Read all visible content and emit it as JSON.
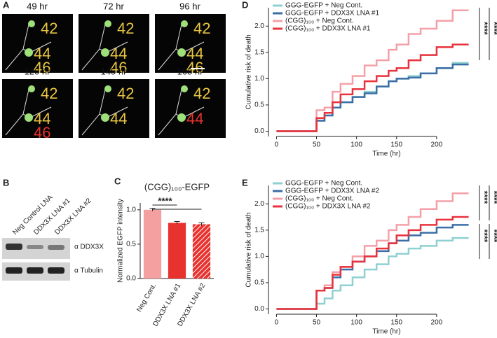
{
  "panel_a": {
    "label": "A",
    "tiles": [
      {
        "time": "49 hr",
        "cells": [
          {
            "label": "42",
            "color": "#e8c542"
          },
          {
            "label": "44",
            "color": "#e8c542"
          },
          {
            "label": "46",
            "color": "#e8c542"
          }
        ]
      },
      {
        "time": "72 hr",
        "cells": [
          {
            "label": "42",
            "color": "#e8c542"
          },
          {
            "label": "44",
            "color": "#e8c542"
          },
          {
            "label": "46",
            "color": "#e8c542"
          }
        ]
      },
      {
        "time": "96 hr",
        "cells": [
          {
            "label": "42",
            "color": "#e8c542"
          },
          {
            "label": "44",
            "color": "#e8c542"
          },
          {
            "label": "46",
            "color": "#e8c542"
          }
        ]
      },
      {
        "time": "120 hr",
        "cells": [
          {
            "label": "42",
            "color": "#e8c542"
          },
          {
            "label": "44",
            "color": "#e8c542"
          },
          {
            "label": "46",
            "color": "#e8322e"
          }
        ]
      },
      {
        "time": "145 hr",
        "cells": [
          {
            "label": "42",
            "color": "#e8c542"
          },
          {
            "label": "44",
            "color": "#e8c542"
          }
        ]
      },
      {
        "time": "168 hr",
        "cells": [
          {
            "label": "42",
            "color": "#e8c542"
          },
          {
            "label": "44",
            "color": "#e8322e"
          }
        ]
      }
    ]
  },
  "panel_b": {
    "label": "B",
    "lanes": [
      "Neg Control LNA",
      "DDX3X LNA #1",
      "DDX3X LNA #2"
    ],
    "bands": [
      "α DDX3X",
      "α Tubulin"
    ]
  },
  "chart_data": [
    {
      "type": "bar",
      "panel": "C",
      "title": "(CGG)₁₀₀-EGFP",
      "ylabel": "Normalized EGFP intensity",
      "categories": [
        "Neg Cont.",
        "DDX3X LNA #1",
        "DDX3X LNA #2"
      ],
      "values": [
        1.0,
        0.81,
        0.79
      ],
      "errors": [
        0.02,
        0.02,
        0.02
      ],
      "colors": [
        "#f4a0a0",
        "#e8322e",
        "#e8322e"
      ],
      "hatch": [
        false,
        false,
        true
      ],
      "ylim": [
        0,
        1.1
      ],
      "yticks": [
        {
          "value": 0,
          "label": "0.0"
        },
        0.5,
        {
          "value": 1,
          "label": "1.0"
        }
      ],
      "annotations": [
        "****"
      ]
    },
    {
      "type": "line",
      "step": true,
      "panel": "D",
      "xlabel": "Time (hr)",
      "ylabel": "Cumulative risk of death",
      "x": [
        0,
        45,
        50,
        60,
        70,
        80,
        95,
        110,
        125,
        140,
        150,
        165,
        180,
        200,
        220,
        240
      ],
      "series": [
        {
          "name": "GGG-EGFP + Neg Cont.",
          "color": "#8fd0d0",
          "values": [
            0,
            0,
            0.2,
            0.3,
            0.45,
            0.55,
            0.65,
            0.75,
            0.85,
            0.95,
            1.0,
            1.05,
            1.1,
            1.2,
            1.3,
            1.3
          ]
        },
        {
          "name": "GGG-EGFP + DDX3X LNA #1",
          "color": "#3a6ea5",
          "values": [
            0,
            0,
            0.2,
            0.3,
            0.45,
            0.55,
            0.65,
            0.72,
            0.85,
            0.95,
            1.0,
            1.02,
            1.1,
            1.2,
            1.27,
            1.27
          ]
        },
        {
          "name": "(CGG)₁₀₀ + Neg Cont.",
          "color": "#f4a0a8",
          "values": [
            0,
            0,
            0.4,
            0.45,
            0.75,
            0.9,
            1.05,
            1.25,
            1.35,
            1.55,
            1.65,
            1.85,
            1.95,
            2.1,
            2.3,
            2.3
          ]
        },
        {
          "name": "(CGG)₁₀₀ + DDX3X LNA #1",
          "color": "#e8323c",
          "values": [
            0,
            0,
            0.25,
            0.35,
            0.55,
            0.7,
            0.8,
            0.95,
            1.05,
            1.15,
            1.2,
            1.35,
            1.45,
            1.6,
            1.65,
            1.65
          ]
        }
      ],
      "xlim": [
        -10,
        250
      ],
      "xticks": [
        0,
        50,
        100,
        150,
        200
      ],
      "ylim": [
        -0.1,
        2.35
      ],
      "yticks": [
        {
          "value": 0,
          "label": "0.0"
        },
        0.5,
        {
          "value": 1,
          "label": "1.0"
        },
        1.5,
        {
          "value": 2,
          "label": "2.0"
        }
      ],
      "annotations": [
        "****",
        "****"
      ]
    },
    {
      "type": "line",
      "step": true,
      "panel": "E",
      "xlabel": "Time (hr)",
      "ylabel": "Cumulative risk of death",
      "x": [
        0,
        45,
        50,
        60,
        70,
        80,
        95,
        110,
        125,
        140,
        150,
        165,
        180,
        200,
        220,
        240
      ],
      "series": [
        {
          "name": "GGG-EGFP + Neg Cont.",
          "color": "#8fd0d0",
          "values": [
            0,
            0,
            0.1,
            0.2,
            0.35,
            0.45,
            0.6,
            0.75,
            0.85,
            1.0,
            1.05,
            1.15,
            1.2,
            1.3,
            1.35,
            1.35
          ]
        },
        {
          "name": "GGG-EGFP + DDX3X LNA #2",
          "color": "#3a6ea5",
          "values": [
            0,
            0,
            0.35,
            0.4,
            0.6,
            0.75,
            0.9,
            1.0,
            1.1,
            1.25,
            1.3,
            1.4,
            1.45,
            1.55,
            1.6,
            1.6
          ]
        },
        {
          "name": "(CGG)₁₀₀ + Neg Cont.",
          "color": "#f4a0a8",
          "values": [
            0,
            0,
            0.35,
            0.45,
            0.7,
            0.8,
            1.0,
            1.2,
            1.3,
            1.5,
            1.6,
            1.75,
            1.9,
            2.05,
            2.2,
            2.2
          ]
        },
        {
          "name": "(CGG)₁₀₀ + DDX3X LNA #2",
          "color": "#e8323c",
          "values": [
            0,
            0,
            0.35,
            0.4,
            0.65,
            0.8,
            0.9,
            1.0,
            1.15,
            1.25,
            1.4,
            1.5,
            1.6,
            1.7,
            1.75,
            1.75
          ]
        }
      ],
      "xlim": [
        -10,
        250
      ],
      "xticks": [
        0,
        50,
        100,
        150,
        200
      ],
      "ylim": [
        -0.1,
        2.35
      ],
      "yticks": [
        {
          "value": 0,
          "label": "0.0"
        },
        0.5,
        {
          "value": 1,
          "label": "1.0"
        },
        1.5,
        {
          "value": 2,
          "label": "2.0"
        }
      ],
      "annotations": [
        "****",
        "****",
        "****",
        "****"
      ]
    }
  ]
}
